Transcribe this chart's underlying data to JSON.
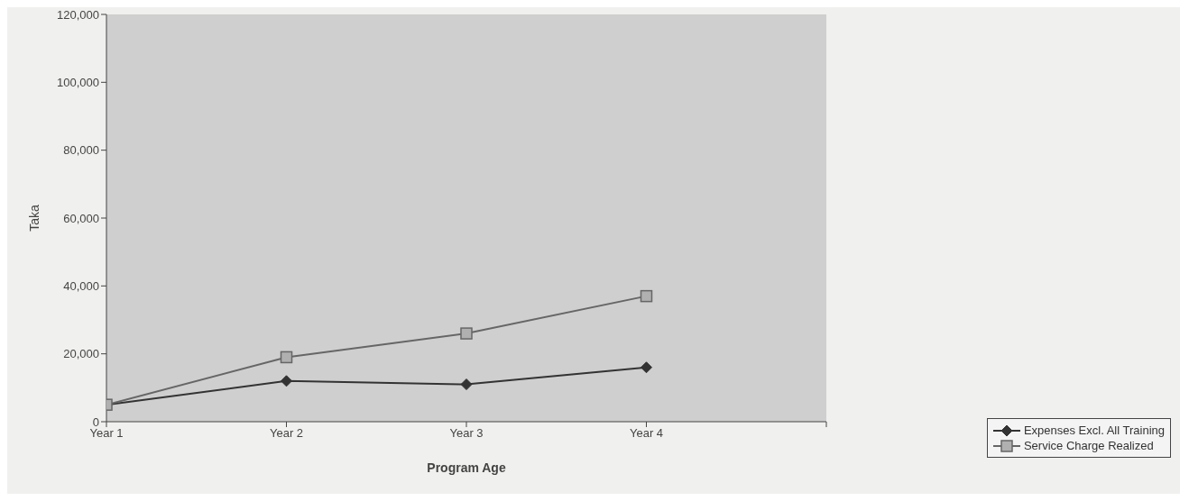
{
  "chart_data": {
    "type": "line",
    "xlabel": "Program Age",
    "ylabel": "Taka",
    "categories": [
      "Year 1",
      "Year 2",
      "Year 3",
      "Year 4",
      null
    ],
    "series": [
      {
        "name": "Expenses Excl. All Training",
        "color": "#333333",
        "marker": "diamond",
        "values": [
          5000,
          12000,
          11000,
          16000,
          null
        ]
      },
      {
        "name": "Service Charge Realized",
        "color": "#666666",
        "marker": "square",
        "values": [
          5000,
          19000,
          26000,
          37000,
          null
        ]
      }
    ],
    "ylim": [
      0,
      120000
    ],
    "yticks": [
      0,
      {
        "value": 20000,
        "label": "20,000"
      },
      {
        "value": 40000,
        "label": "40,000"
      },
      {
        "value": 60000,
        "label": "60,000"
      },
      {
        "value": 80000,
        "label": "80,000"
      },
      {
        "value": 100000,
        "label": "100,000"
      },
      {
        "value": 120000,
        "label": "120,000"
      }
    ],
    "grid": false,
    "legend": "bottom right"
  }
}
